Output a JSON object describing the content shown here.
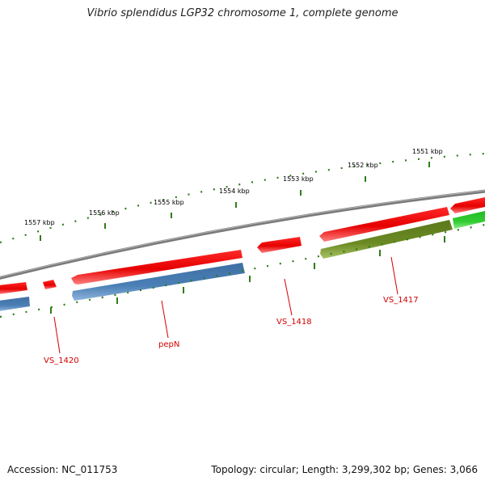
{
  "title": "Vibrio splendidus LGP32 chromosome 1, complete genome",
  "footer": {
    "accession": "Accession: NC_011753",
    "summary": "Topology: circular; Length: 3,299,302 bp; Genes: 3,066"
  },
  "scale_labels": [
    "1557 kbp",
    "1556 kbp",
    "1555 kbp",
    "1554 kbp",
    "1553 kbp",
    "1552 kbp",
    "1551 kbp"
  ],
  "gene_labels": [
    "VS_1420",
    "pepN",
    "VS_1418",
    "VS_1417"
  ],
  "colors": {
    "backbone": "#8a8a8a",
    "forward_gene": "#ff0000",
    "reverse_blue": "#4a7fb5",
    "reverse_olive": "#6b8a23",
    "reverse_green": "#33cc33",
    "tick": "#2e7d1a",
    "label": "#d40000"
  }
}
